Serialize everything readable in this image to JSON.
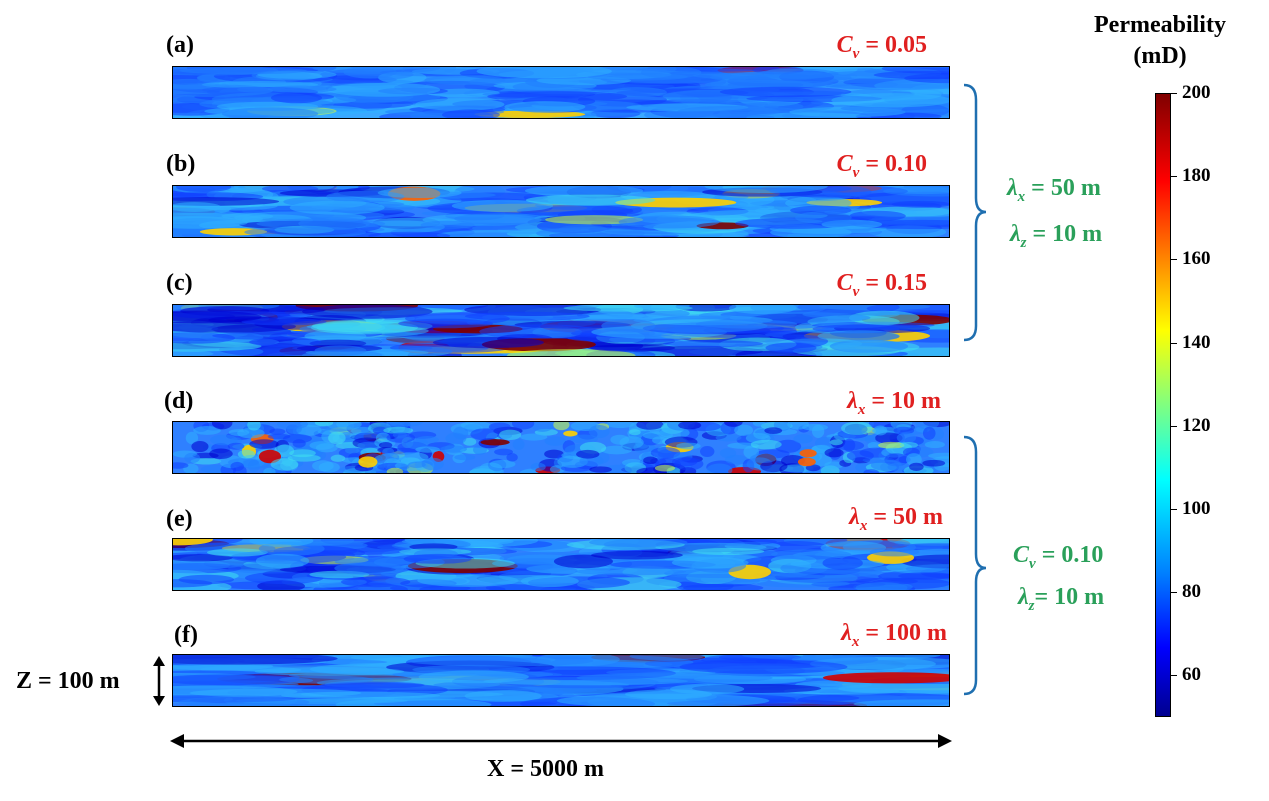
{
  "panels": [
    {
      "label": "(a)",
      "param_sym": "C",
      "param_sub": "v",
      "param_val": " = 0.05",
      "noise": 0.25,
      "hot": 0.05
    },
    {
      "label": "(b)",
      "param_sym": "C",
      "param_sub": "v",
      "param_val": " = 0.10",
      "noise": 0.45,
      "hot": 0.25
    },
    {
      "label": "(c)",
      "param_sym": "C",
      "param_sub": "v",
      "param_val": " = 0.15",
      "noise": 0.6,
      "hot": 0.5
    },
    {
      "label": "(d)",
      "param_sym": "λ",
      "param_sub": "x",
      "param_val": " = 10 m",
      "noise": 0.5,
      "hot": 0.3
    },
    {
      "label": "(e)",
      "param_sym": "λ",
      "param_sub": "x",
      "param_val": " = 50 m",
      "noise": 0.45,
      "hot": 0.2
    },
    {
      "label": "(f)",
      "param_sym": "λ",
      "param_sub": "x",
      "param_val": " = 100 m",
      "noise": 0.4,
      "hot": 0.15
    }
  ],
  "group1": {
    "line1_sym": "λ",
    "line1_sub": "x",
    "line1_val": " = 50 m",
    "line2_sym": "λ",
    "line2_sub": "z",
    "line2_val": " = 10 m"
  },
  "group2": {
    "line1_sym": "C",
    "line1_sub": "v",
    "line1_val": " = 0.10",
    "line2_sym": "λ",
    "line2_sub": "z",
    "line2_val": "= 10 m"
  },
  "colorbar": {
    "title_line1": "Permeability",
    "title_line2": "(mD)",
    "ticks": [
      "200",
      "180",
      "160",
      "140",
      "120",
      "100",
      "80",
      "60"
    ],
    "min": 50,
    "max": 200
  },
  "dims": {
    "z_label": "Z = 100 m",
    "x_label": "X = 5000 m"
  },
  "colors": {
    "param": "#e02020",
    "group": "#2aa05a",
    "bracket": "#1f6fb0"
  }
}
